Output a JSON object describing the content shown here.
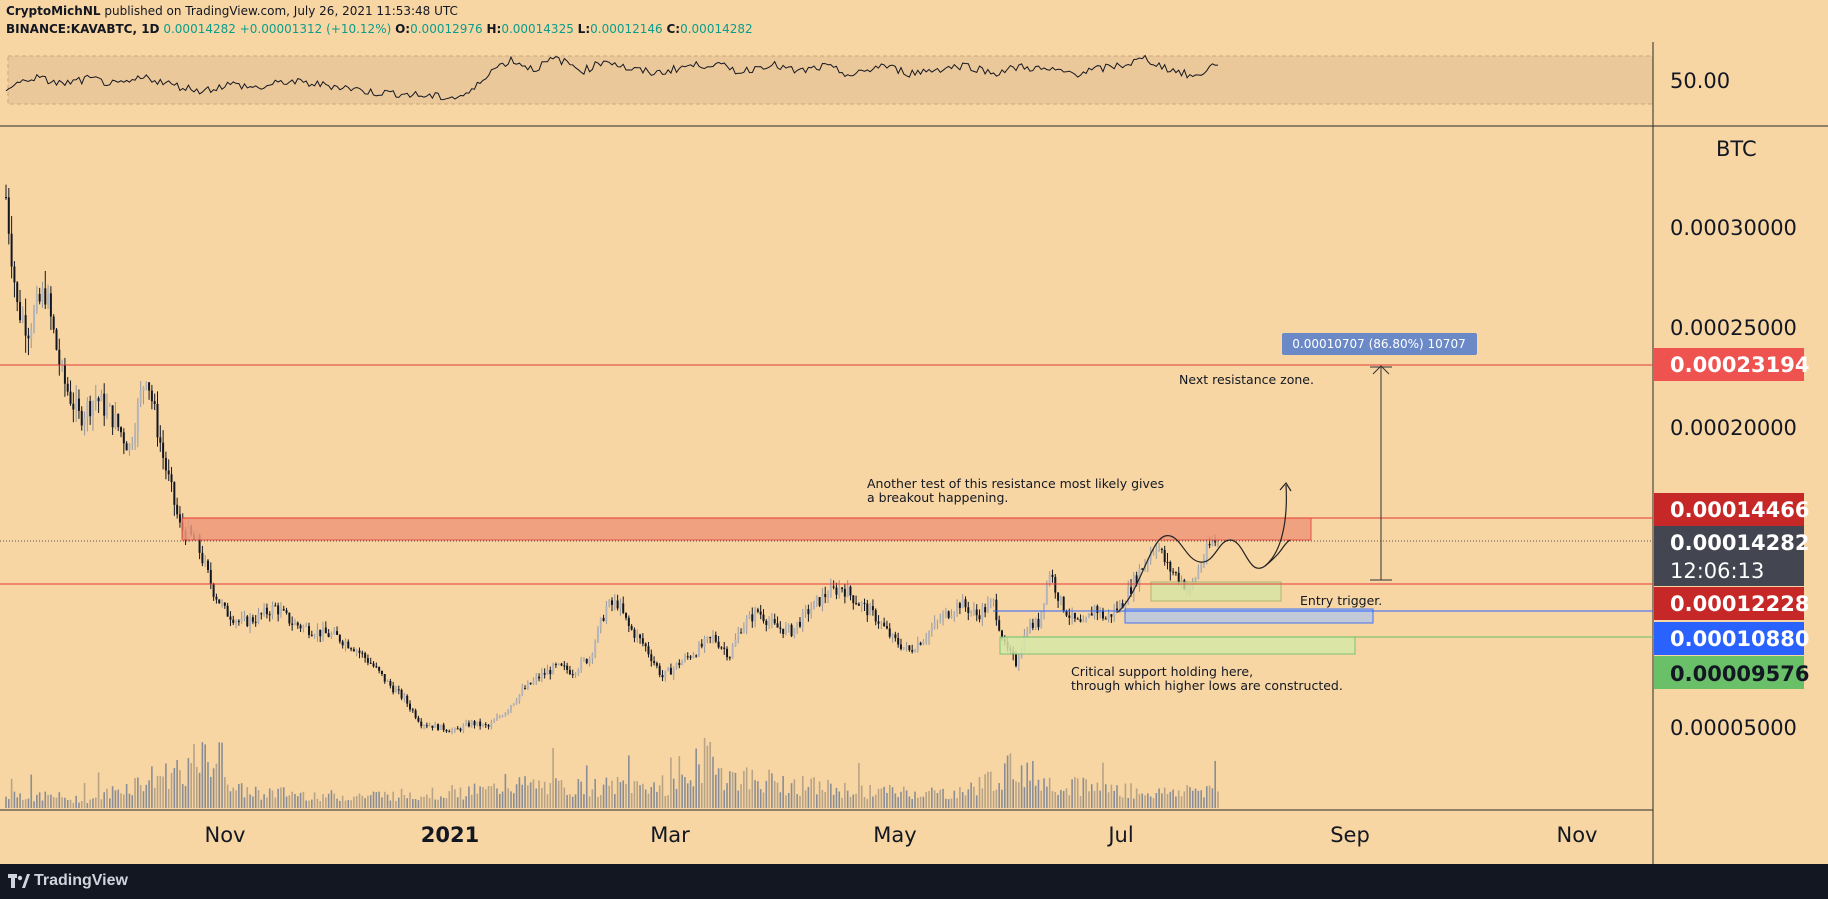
{
  "header": {
    "author": "CryptoMichNL",
    "published": "published on TradingView.com, July 26, 2021 11:53:48 UTC",
    "symbol": "BINANCE:KAVABTC, 1D",
    "last": "0.00014282",
    "change": "+0.00001312 (+10.12%)",
    "o_label": "O:",
    "o_value": "0.00012976",
    "h_label": "H:",
    "h_value": "0.00014325",
    "l_label": "L:",
    "l_value": "0.00012146",
    "c_label": "C:",
    "c_value": "0.00014282"
  },
  "footer": {
    "brand": "TradingView"
  },
  "colors": {
    "background": "#f7d6a4",
    "resistance_zone": "#ef9a7a",
    "entry_zone": "#d6e5a4",
    "support_zone": "#d7e8a7",
    "blue_zone": "#b9c9e3",
    "red_line": "#e53935",
    "tag_red": "#c62828",
    "tag_red_light": "#ef5350",
    "tag_blue": "#2962ff",
    "tag_green": "#6abf69",
    "tag_dark": "#434651"
  },
  "chart_data": {
    "type": "candlestick",
    "price_axis": {
      "ticks": [
        "0.00030000",
        "0.00025000",
        "0.00020000",
        "0.00005000"
      ],
      "unit_label": "BTC"
    },
    "rsi_axis": {
      "ticks": [
        "50.00"
      ]
    },
    "time_axis": {
      "ticks": [
        "Nov",
        "2021",
        "Mar",
        "May",
        "Jul",
        "Sep",
        "Nov"
      ]
    },
    "price_tags": [
      {
        "value": "0.00023194",
        "color": "tag_red_light"
      },
      {
        "value": "0.00014466",
        "color": "tag_red"
      },
      {
        "value": "0.00014282",
        "color": "tag_dark",
        "countdown": "12:06:13"
      },
      {
        "value": "0.00012228",
        "color": "tag_red"
      },
      {
        "value": "0.00010880",
        "color": "tag_blue"
      },
      {
        "value": "0.00009576",
        "color": "tag_green"
      }
    ],
    "measure_label": "0.00010707 (86.80%) 10707",
    "annotations": {
      "next_resistance": "Next resistance zone.",
      "another_test_1": "Another test of this resistance most likely gives",
      "another_test_2": "a breakout happening.",
      "entry_trigger": "Entry trigger.",
      "critical_1": "Critical support holding here,",
      "critical_2": "through which higher lows are constructed."
    },
    "price_path": [
      [
        0,
        0.000315
      ],
      [
        4,
        0.00026
      ],
      [
        8,
        0.00025
      ],
      [
        14,
        0.000268
      ],
      [
        20,
        0.000225
      ],
      [
        26,
        0.000205
      ],
      [
        32,
        0.000215
      ],
      [
        38,
        0.000205
      ],
      [
        44,
        0.00019
      ],
      [
        50,
        0.000228
      ],
      [
        56,
        0.000185
      ],
      [
        62,
        0.00015
      ],
      [
        68,
        0.000142
      ],
      [
        74,
        0.000118
      ],
      [
        78,
        0.000108
      ],
      [
        84,
        0.000102
      ],
      [
        90,
        0.000105
      ],
      [
        96,
        0.00011
      ],
      [
        102,
        0.000102
      ],
      [
        110,
        9.8e-05
      ],
      [
        118,
        9.5e-05
      ],
      [
        124,
        9e-05
      ],
      [
        130,
        8.2e-05
      ],
      [
        136,
        7.2e-05
      ],
      [
        142,
        6.4e-05
      ],
      [
        148,
        5.2e-05
      ],
      [
        154,
        5e-05
      ],
      [
        160,
        4.8e-05
      ],
      [
        166,
        5.2e-05
      ],
      [
        172,
        5e-05
      ],
      [
        178,
        5.8e-05
      ],
      [
        184,
        6.8e-05
      ],
      [
        190,
        7.5e-05
      ],
      [
        196,
        8e-05
      ],
      [
        202,
        7.8e-05
      ],
      [
        208,
        8.5e-05
      ],
      [
        214,
        0.00011
      ],
      [
        218,
        0.000112
      ],
      [
        222,
        0.0001
      ],
      [
        228,
        9e-05
      ],
      [
        234,
        7.5e-05
      ],
      [
        240,
        8.2e-05
      ],
      [
        246,
        8.8e-05
      ],
      [
        252,
        9.5e-05
      ],
      [
        258,
        8.6e-05
      ],
      [
        262,
        0.0001
      ],
      [
        268,
        0.000108
      ],
      [
        274,
        0.0001
      ],
      [
        280,
        9.8e-05
      ],
      [
        286,
        0.000108
      ],
      [
        292,
        0.000116
      ],
      [
        298,
        0.00012
      ],
      [
        304,
        0.000112
      ],
      [
        310,
        0.000105
      ],
      [
        316,
        9.4e-05
      ],
      [
        322,
        8.8e-05
      ],
      [
        328,
        9.6e-05
      ],
      [
        334,
        0.000105
      ],
      [
        340,
        0.000112
      ],
      [
        346,
        0.000106
      ],
      [
        352,
        0.000112
      ],
      [
        356,
        9e-05
      ],
      [
        360,
        8.2e-05
      ],
      [
        364,
        0.0001
      ],
      [
        368,
        0.000102
      ],
      [
        372,
        0.000128
      ],
      [
        376,
        0.000112
      ],
      [
        380,
        0.000104
      ],
      [
        384,
        0.0001
      ],
      [
        388,
        0.00011
      ],
      [
        392,
        0.000104
      ],
      [
        398,
        0.000112
      ],
      [
        404,
        0.000128
      ],
      [
        410,
        0.000142
      ],
      [
        414,
        0.00013
      ],
      [
        418,
        0.000125
      ],
      [
        422,
        0.000118
      ],
      [
        426,
        0.000132
      ],
      [
        430,
        0.00014282
      ]
    ],
    "volume": [
      [
        0,
        0.25
      ],
      [
        30,
        0.15
      ],
      [
        76,
        0.9
      ],
      [
        82,
        0.3
      ],
      [
        120,
        0.2
      ],
      [
        150,
        0.25
      ],
      [
        172,
        0.3
      ],
      [
        180,
        0.4
      ],
      [
        200,
        0.35
      ],
      [
        240,
        0.4
      ],
      [
        252,
        1.0
      ],
      [
        256,
        0.55
      ],
      [
        300,
        0.3
      ],
      [
        340,
        0.25
      ],
      [
        360,
        0.7
      ],
      [
        362,
        0.65
      ],
      [
        372,
        0.45
      ],
      [
        410,
        0.25
      ],
      [
        430,
        0.35
      ]
    ],
    "rsi_path": [
      [
        0,
        44
      ],
      [
        10,
        52
      ],
      [
        20,
        47
      ],
      [
        30,
        51
      ],
      [
        40,
        46
      ],
      [
        50,
        52
      ],
      [
        60,
        46
      ],
      [
        70,
        42
      ],
      [
        80,
        47
      ],
      [
        90,
        44
      ],
      [
        100,
        49
      ],
      [
        110,
        47
      ],
      [
        120,
        45
      ],
      [
        130,
        41
      ],
      [
        140,
        40
      ],
      [
        150,
        38
      ],
      [
        160,
        37
      ],
      [
        166,
        41
      ],
      [
        172,
        56
      ],
      [
        180,
        65
      ],
      [
        188,
        58
      ],
      [
        196,
        66
      ],
      [
        206,
        57
      ],
      [
        214,
        65
      ],
      [
        222,
        58
      ],
      [
        232,
        55
      ],
      [
        242,
        60
      ],
      [
        252,
        62
      ],
      [
        262,
        56
      ],
      [
        272,
        62
      ],
      [
        282,
        56
      ],
      [
        292,
        60
      ],
      [
        302,
        53
      ],
      [
        312,
        61
      ],
      [
        322,
        55
      ],
      [
        332,
        58
      ],
      [
        342,
        61
      ],
      [
        352,
        55
      ],
      [
        362,
        60
      ],
      [
        372,
        57
      ],
      [
        382,
        55
      ],
      [
        392,
        59
      ],
      [
        400,
        62
      ],
      [
        406,
        66
      ],
      [
        412,
        60
      ],
      [
        418,
        56
      ],
      [
        424,
        52
      ],
      [
        428,
        58
      ],
      [
        432,
        63
      ]
    ]
  }
}
